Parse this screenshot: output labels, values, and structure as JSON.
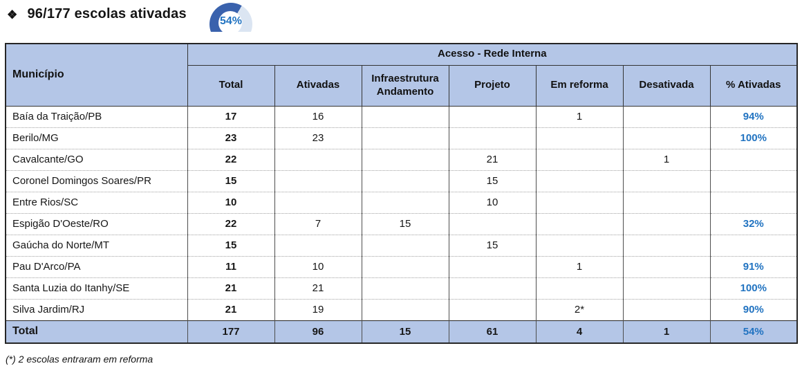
{
  "title": {
    "bullet": "❖",
    "text": "96/177 escolas ativadas"
  },
  "gauge": {
    "label": "54%",
    "percent": 54,
    "arc_color": "#3a62ad",
    "track_color": "#dbe5f2",
    "label_color": "#2173c1"
  },
  "colors": {
    "header_bg": "#b4c6e7",
    "total_row_bg": "#b4c6e7",
    "pct_blue": "#2173c1",
    "outer_border": "#262626"
  },
  "table": {
    "group_header": "Acesso - Rede Interna",
    "columns": {
      "municipio": "Município",
      "total": "Total",
      "ativadas": "Ativadas",
      "infra": "Infraestrutura Andamento",
      "projeto": "Projeto",
      "reforma": "Em reforma",
      "desativada": "Desativada",
      "pct": "% Ativadas"
    },
    "rows": [
      {
        "municipio": "Baía da Traição/PB",
        "total": "17",
        "ativadas": "16",
        "infra": "",
        "projeto": "",
        "reforma": "1",
        "desativada": "",
        "pct": "94%"
      },
      {
        "municipio": "Berilo/MG",
        "total": "23",
        "ativadas": "23",
        "infra": "",
        "projeto": "",
        "reforma": "",
        "desativada": "",
        "pct": "100%"
      },
      {
        "municipio": "Cavalcante/GO",
        "total": "22",
        "ativadas": "",
        "infra": "",
        "projeto": "21",
        "reforma": "",
        "desativada": "1",
        "pct": ""
      },
      {
        "municipio": "Coronel Domingos Soares/PR",
        "total": "15",
        "ativadas": "",
        "infra": "",
        "projeto": "15",
        "reforma": "",
        "desativada": "",
        "pct": ""
      },
      {
        "municipio": "Entre Rios/SC",
        "total": "10",
        "ativadas": "",
        "infra": "",
        "projeto": "10",
        "reforma": "",
        "desativada": "",
        "pct": ""
      },
      {
        "municipio": "Espigão D'Oeste/RO",
        "total": "22",
        "ativadas": "7",
        "infra": "15",
        "projeto": "",
        "reforma": "",
        "desativada": "",
        "pct": "32%"
      },
      {
        "municipio": "Gaúcha do Norte/MT",
        "total": "15",
        "ativadas": "",
        "infra": "",
        "projeto": "15",
        "reforma": "",
        "desativada": "",
        "pct": ""
      },
      {
        "municipio": "Pau D'Arco/PA",
        "total": "11",
        "ativadas": "10",
        "infra": "",
        "projeto": "",
        "reforma": "1",
        "desativada": "",
        "pct": "91%"
      },
      {
        "municipio": "Santa Luzia do Itanhy/SE",
        "total": "21",
        "ativadas": "21",
        "infra": "",
        "projeto": "",
        "reforma": "",
        "desativada": "",
        "pct": "100%"
      },
      {
        "municipio": "Silva Jardim/RJ",
        "total": "21",
        "ativadas": "19",
        "infra": "",
        "projeto": "",
        "reforma": "2*",
        "desativada": "",
        "pct": "90%"
      }
    ],
    "total_row": {
      "municipio": "Total",
      "total": "177",
      "ativadas": "96",
      "infra": "15",
      "projeto": "61",
      "reforma": "4",
      "desativada": "1",
      "pct": "54%"
    }
  },
  "footnote": "(*) 2 escolas entraram em reforma"
}
